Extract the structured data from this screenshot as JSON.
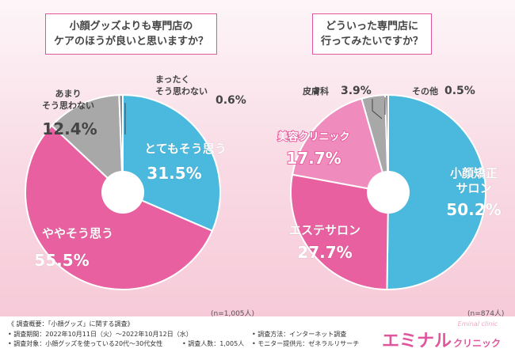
{
  "questions": {
    "left": [
      "小顔グッズよりも専門店の",
      "ケアのほうが良いと思いますか？"
    ],
    "right": [
      "どういった専門店に",
      "行ってみたいですか？"
    ]
  },
  "colors": {
    "blue": "#4bb9de",
    "pink": "#e8609f",
    "gray": "#a8a8a8",
    "lightpink": "#f08cbd",
    "brand": "#e0569c"
  },
  "chart_data": [
    {
      "type": "pie",
      "title": "小顔グッズよりも専門店のケアのほうが良いと思いますか？",
      "sample_size": "(n=1,005人)",
      "slices": [
        {
          "label": "とてもそう思う",
          "value": 31.5,
          "display": "31.5%",
          "color": "#4bb9de"
        },
        {
          "label": "ややそう思う",
          "value": 55.5,
          "display": "55.5%",
          "color": "#e8609f"
        },
        {
          "label": "あまりそう思わない",
          "value": 12.4,
          "display": "12.4%",
          "color": "#a8a8a8"
        },
        {
          "label": "まったくそう思わない",
          "value": 0.6,
          "display": "0.6%",
          "color": "#8a8a8a"
        }
      ]
    },
    {
      "type": "pie",
      "title": "どういった専門店に行ってみたいですか？",
      "sample_size": "(n=874人)",
      "slices": [
        {
          "label": "小顔矯正サロン",
          "value": 50.2,
          "display": "50.2%",
          "color": "#4bb9de"
        },
        {
          "label": "エステサロン",
          "value": 27.7,
          "display": "27.7%",
          "color": "#e8609f"
        },
        {
          "label": "美容クリニック",
          "value": 17.7,
          "display": "17.7%",
          "color": "#f08cbd"
        },
        {
          "label": "皮膚科",
          "value": 3.9,
          "display": "3.9%",
          "color": "#a8a8a8"
        },
        {
          "label": "その他",
          "value": 0.5,
          "display": "0.5%",
          "color": "#8a8a8a"
        }
      ]
    }
  ],
  "footer": {
    "title": "《 調査概要：「小顔グッズ」に関する調査》",
    "period": "• 調査期間：2022年10月11日（火）～2022年10月12日（水）",
    "target": "• 調査対象：小顔グッズを使っている20代～30代女性",
    "count": "• 調査人数：1,005人",
    "method": "• 調査方法：インターネット調査",
    "provider": "• モニター提供元：ゼネラルリサーチ",
    "brand_main": "エミナル",
    "brand_sub": "クリニック",
    "brand_en": "Eminal clinic"
  }
}
